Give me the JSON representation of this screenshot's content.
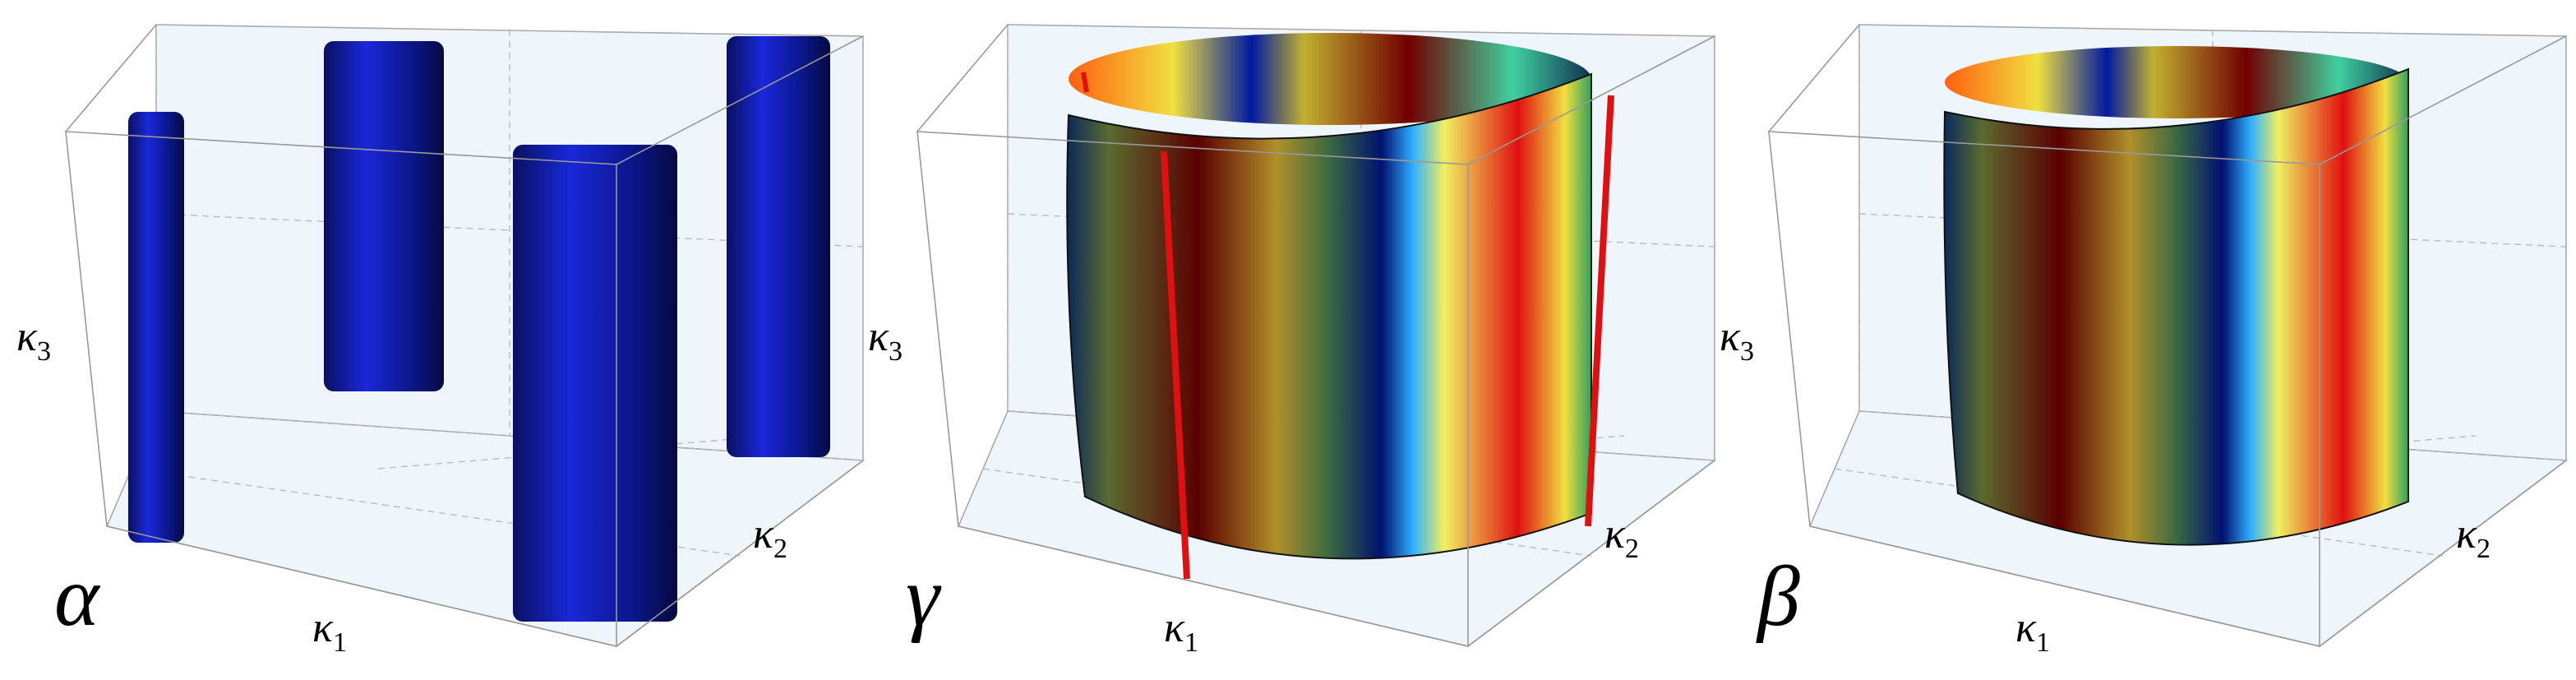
{
  "panels": [
    {
      "label": "α",
      "x_axis": "κ",
      "x_index": "1",
      "y_axis": "κ",
      "y_index": "2",
      "z_axis": "κ",
      "z_index": "3"
    },
    {
      "label": "γ",
      "x_axis": "κ",
      "x_index": "1",
      "y_axis": "κ",
      "y_index": "2",
      "z_axis": "κ",
      "z_index": "3"
    },
    {
      "label": "β",
      "x_axis": "κ",
      "x_index": "1",
      "y_axis": "κ",
      "y_index": "2",
      "z_axis": "κ",
      "z_index": "3"
    }
  ]
}
